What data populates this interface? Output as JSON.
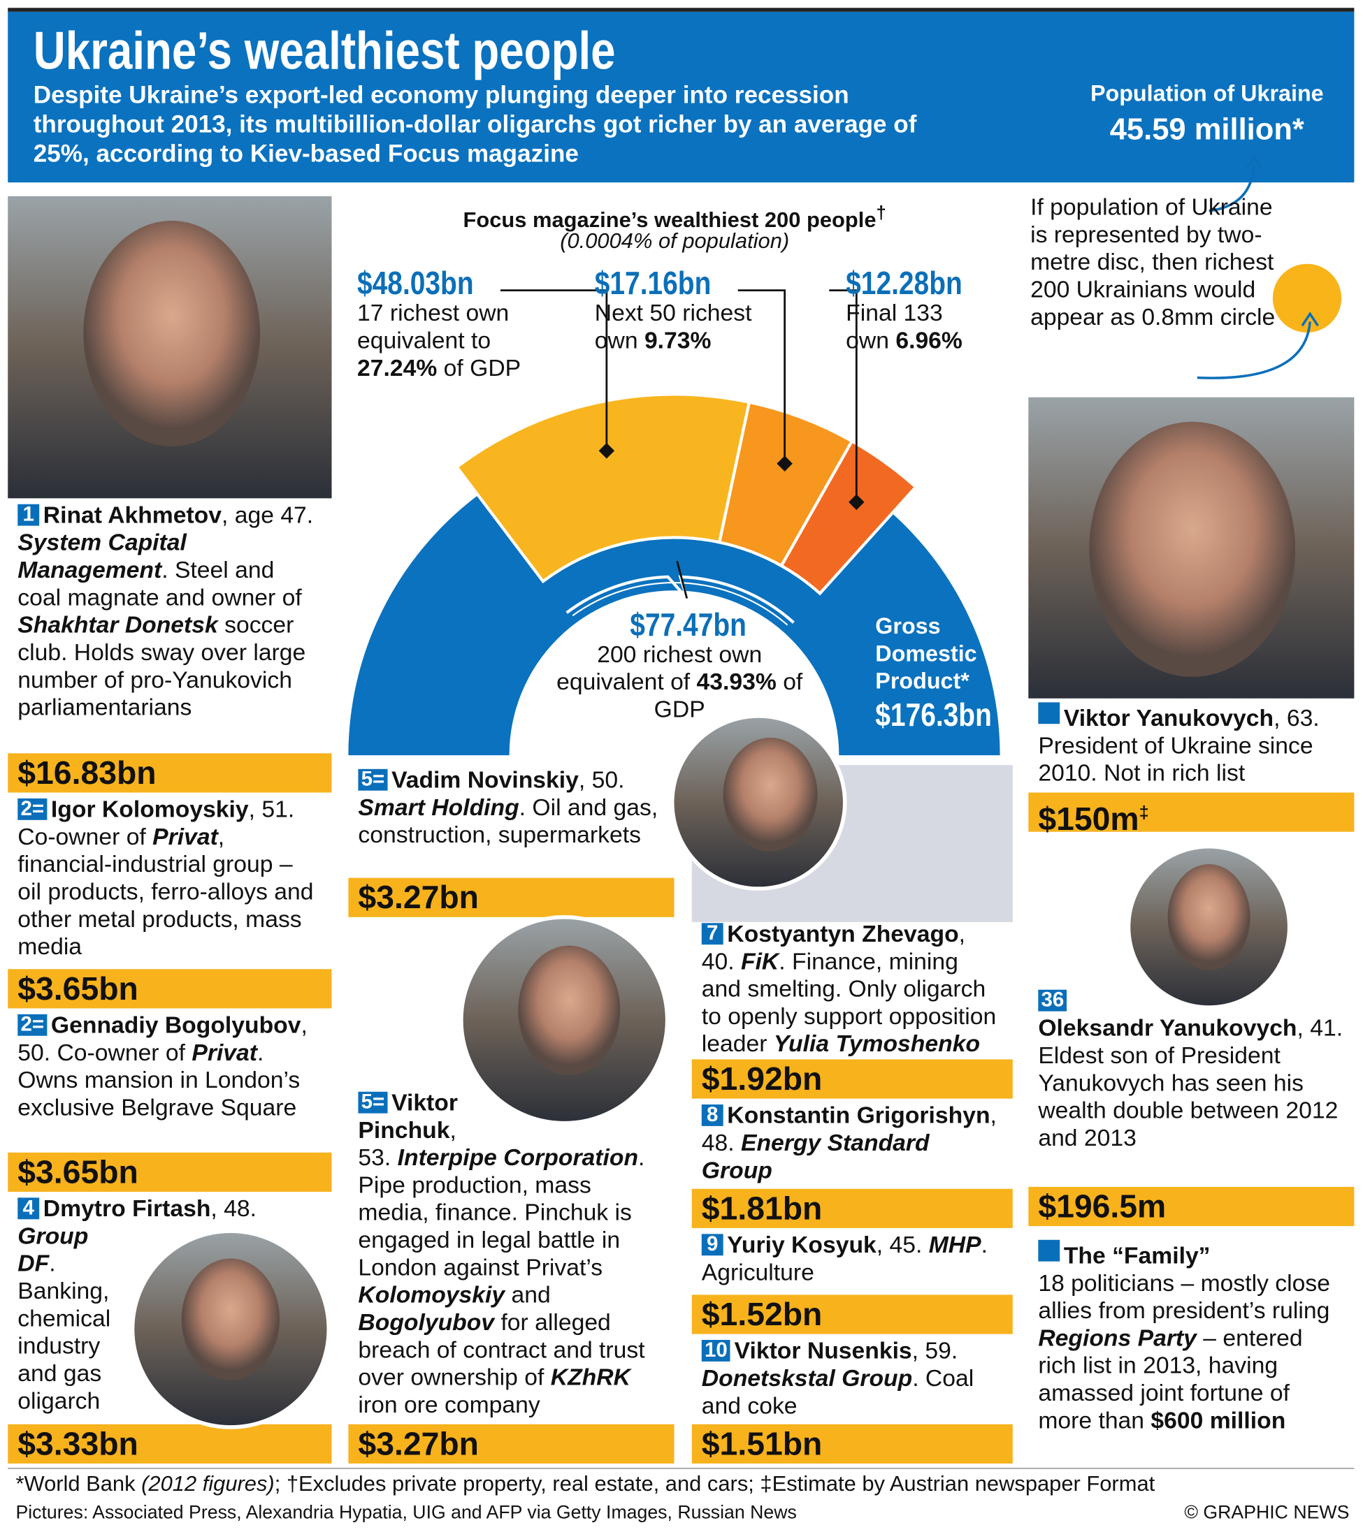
{
  "header": {
    "title": "Ukraine’s wealthiest people",
    "subtitle": "Despite Ukraine’s export-led economy plunging deeper into recession throughout 2013, its multibillion-dollar oligarchs got richer by an average of 25%, according to Kiev-based Focus magazine",
    "population_label": "Population of Ukraine",
    "population_value": "45.59 million*"
  },
  "disc_note": "If population of Ukraine is represented by two-metre disc, then richest 200 Ukrainians would appear as 0.8mm circle",
  "gauge": {
    "title": "Focus magazine’s wealthiest 200 people",
    "title_mark": "†",
    "subtitle": "(0.0004% of population)",
    "segments": [
      {
        "value": "$48.03bn",
        "text": [
          "17 richest own equivalent to ",
          "27.24%",
          " of GDP"
        ]
      },
      {
        "value": "$17.16bn",
        "text": [
          "Next 50 richest own ",
          "9.73%"
        ]
      },
      {
        "value": "$12.28bn",
        "text": [
          "Final 133 own ",
          "6.96%"
        ]
      }
    ],
    "total": {
      "value": "$77.47bn",
      "text": [
        "200 richest own equivalent of ",
        "43.93%",
        " of GDP"
      ]
    },
    "gdp": {
      "label": "Gross Domestic Product*",
      "value": "$176.3bn"
    }
  },
  "people": [
    {
      "rank": "1",
      "name": "Rinat Akhmetov",
      "text": [
        ", age 47. ",
        "System Capital Management",
        ". Steel and coal magnate and owner of ",
        "Shakhtar Donetsk",
        " soccer club. Holds sway over large number of pro-Yanukovich parliamentarians"
      ],
      "wealth": "$16.83bn"
    },
    {
      "rank": "2=",
      "name": "Igor Kolomoyskiy",
      "text": [
        ", 51. Co-owner of ",
        "Privat",
        ", financial-industrial group – oil products, ferro-alloys and other metal products, mass media"
      ],
      "wealth": "$3.65bn"
    },
    {
      "rank": "2=",
      "name": "Gennadiy Bogolyubov",
      "text": [
        ", 50. Co-owner of ",
        "Privat",
        ". Owns mansion in London’s exclusive Belgrave Square"
      ],
      "wealth": "$3.65bn"
    },
    {
      "rank": "4",
      "name": "Dmytro Firtash",
      "text": [
        ", 48. ",
        "Group DF",
        ". Banking, chemical industry and gas oligarch"
      ],
      "wealth": "$3.33bn"
    },
    {
      "rank": "5=",
      "name": "Vadim Novinskiy",
      "text": [
        ", 50. ",
        "Smart Holding",
        ". Oil and gas, construction, supermarkets"
      ],
      "wealth": "$3.27bn"
    },
    {
      "rank": "5=",
      "name": "Viktor Pinchuk",
      "text": [
        ", 53. ",
        "Interpipe Corporation",
        ". Pipe production, mass media, finance. Pinchuk is engaged in legal battle in London against Privat’s ",
        "Kolomoyskiy",
        " and ",
        "Bogolyubov",
        " for alleged breach of contract and trust over ownership of ",
        "KZhRK",
        " iron ore company"
      ],
      "wealth": "$3.27bn"
    },
    {
      "rank": "7",
      "name": "Kostyantyn Zhevago",
      "text": [
        ", 40. ",
        "FiK",
        ". Finance, mining and smelting. Only oligarch to openly support opposition leader ",
        "Yulia Tymoshenko"
      ],
      "wealth": "$1.92bn"
    },
    {
      "rank": "8",
      "name": "Konstantin Grigorishyn",
      "text": [
        ", 48. ",
        "Energy Standard Group"
      ],
      "wealth": "$1.81bn"
    },
    {
      "rank": "9",
      "name": "Yuriy Kosyuk",
      "text": [
        ", 45. ",
        "MHP",
        ". Agriculture"
      ],
      "wealth": "$1.52bn"
    },
    {
      "rank": "10",
      "name": "Viktor Nusenkis",
      "text": [
        ", 59. ",
        "Donetskstal Group",
        ". Coal and coke"
      ],
      "wealth": "$1.51bn"
    },
    {
      "name": "Viktor Yanukovych",
      "text": [
        ", 63. President of Ukraine since 2010. Not in rich list"
      ],
      "wealth": "$150m",
      "wealth_mark": "‡"
    },
    {
      "rank": "36",
      "name": "Oleksandr Yanukovych",
      "text": [
        ", 41. Eldest son of President Yanukovych has seen his wealth double between 2012 and 2013"
      ],
      "wealth": "$196.5m"
    },
    {
      "name": "The “Family”",
      "text": [
        "18 politicians – mostly close allies from president’s ruling ",
        "Regions Party",
        " – entered rich list in 2013, having amassed joint fortune of more than ",
        "$600 million"
      ]
    }
  ],
  "footnotes": [
    "*World Bank ",
    "(2012 figures)",
    "; †Excludes private property, real estate, and cars; ‡Estimate by Austrian newspaper Format"
  ],
  "credit": "Pictures: Associated Press, Alexandria Hypatia, UIG and AFP via Getty Images, Russian News",
  "copyright": "© GRAPHIC NEWS"
}
